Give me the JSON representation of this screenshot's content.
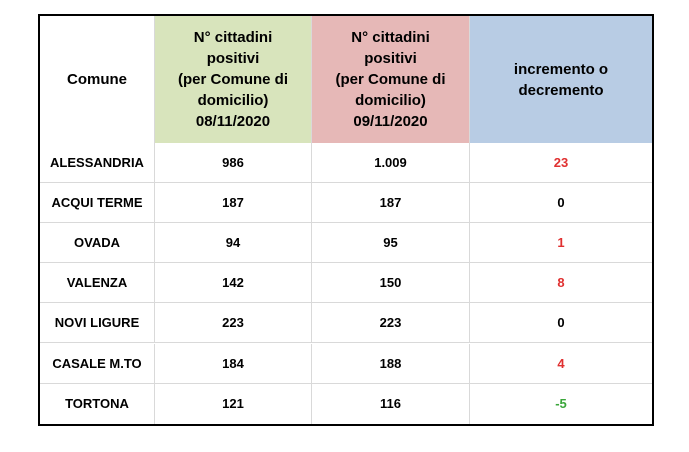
{
  "table": {
    "header": [
      [
        "Comune"
      ],
      [
        "N° cittadini",
        "positivi",
        "(per Comune di",
        "domicilio)",
        "08/11/2020"
      ],
      [
        "N° cittadini",
        "positivi",
        "(per Comune di",
        "domicilio)",
        "09/11/2020"
      ],
      [
        "incremento o",
        "decremento"
      ]
    ],
    "rows": [
      [
        "ALESSANDRIA",
        "986",
        "1.009",
        "23"
      ],
      [
        "ACQUI TERME",
        "187",
        "187",
        "0"
      ],
      [
        "OVADA",
        "94",
        "95",
        "1"
      ],
      [
        "VALENZA",
        "142",
        "150",
        "8"
      ],
      [
        "NOVI LIGURE",
        "223",
        "223",
        "0"
      ],
      [
        "CASALE M.TO",
        "184",
        "188",
        "4"
      ],
      [
        "TORTONA",
        "121",
        "116",
        "-5"
      ]
    ]
  }
}
